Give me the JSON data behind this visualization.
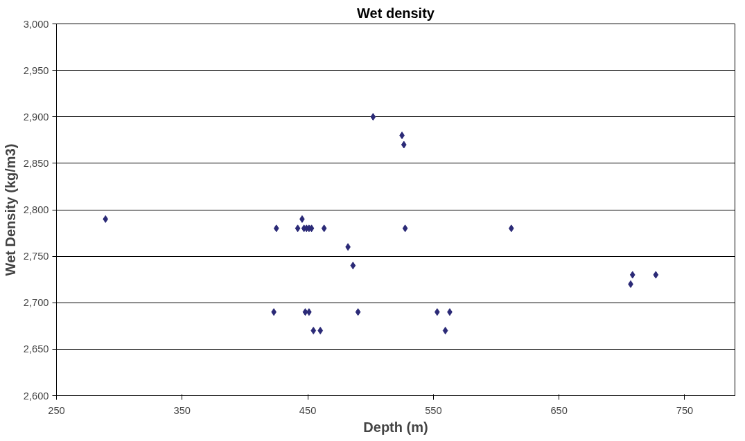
{
  "chart_data": {
    "type": "scatter",
    "title": "Wet density",
    "xlabel": "Depth (m)",
    "ylabel": "Wet Density (kg/m3)",
    "x": [
      289,
      425,
      442,
      445.5,
      447,
      449,
      451,
      453,
      463,
      527.5,
      482,
      486,
      612,
      423,
      448,
      451,
      490,
      553,
      563,
      454.5,
      460,
      559.5,
      502,
      525,
      526.5,
      707,
      708.5,
      727
    ],
    "series": [
      {
        "color": "#2b2a77",
        "values": [
          2790,
          2780,
          2780,
          2790,
          2780,
          2780,
          2780,
          2780,
          2780,
          2780,
          2760,
          2740,
          2780,
          2690,
          2690,
          2690,
          2690,
          2690,
          2690,
          2670,
          2670,
          2670,
          2900,
          2880,
          2870,
          2720,
          2730,
          2730
        ]
      }
    ],
    "marker": "diamond",
    "xlim": [
      250,
      790
    ],
    "ylim": [
      2600,
      3000
    ],
    "xticks": [
      250,
      350,
      450,
      550,
      650,
      750
    ],
    "yticks": [
      {
        "value": 2600,
        "label": "2,600"
      },
      {
        "value": 2650,
        "label": "2,650"
      },
      {
        "value": 2700,
        "label": "2,700"
      },
      {
        "value": 2750,
        "label": "2,750"
      },
      {
        "value": 2800,
        "label": "2,800"
      },
      {
        "value": 2850,
        "label": "2,850"
      },
      {
        "value": 2900,
        "label": "2,900"
      },
      {
        "value": 2950,
        "label": "2,950"
      },
      {
        "value": 3000,
        "label": "3,000"
      }
    ],
    "grid": "y"
  }
}
